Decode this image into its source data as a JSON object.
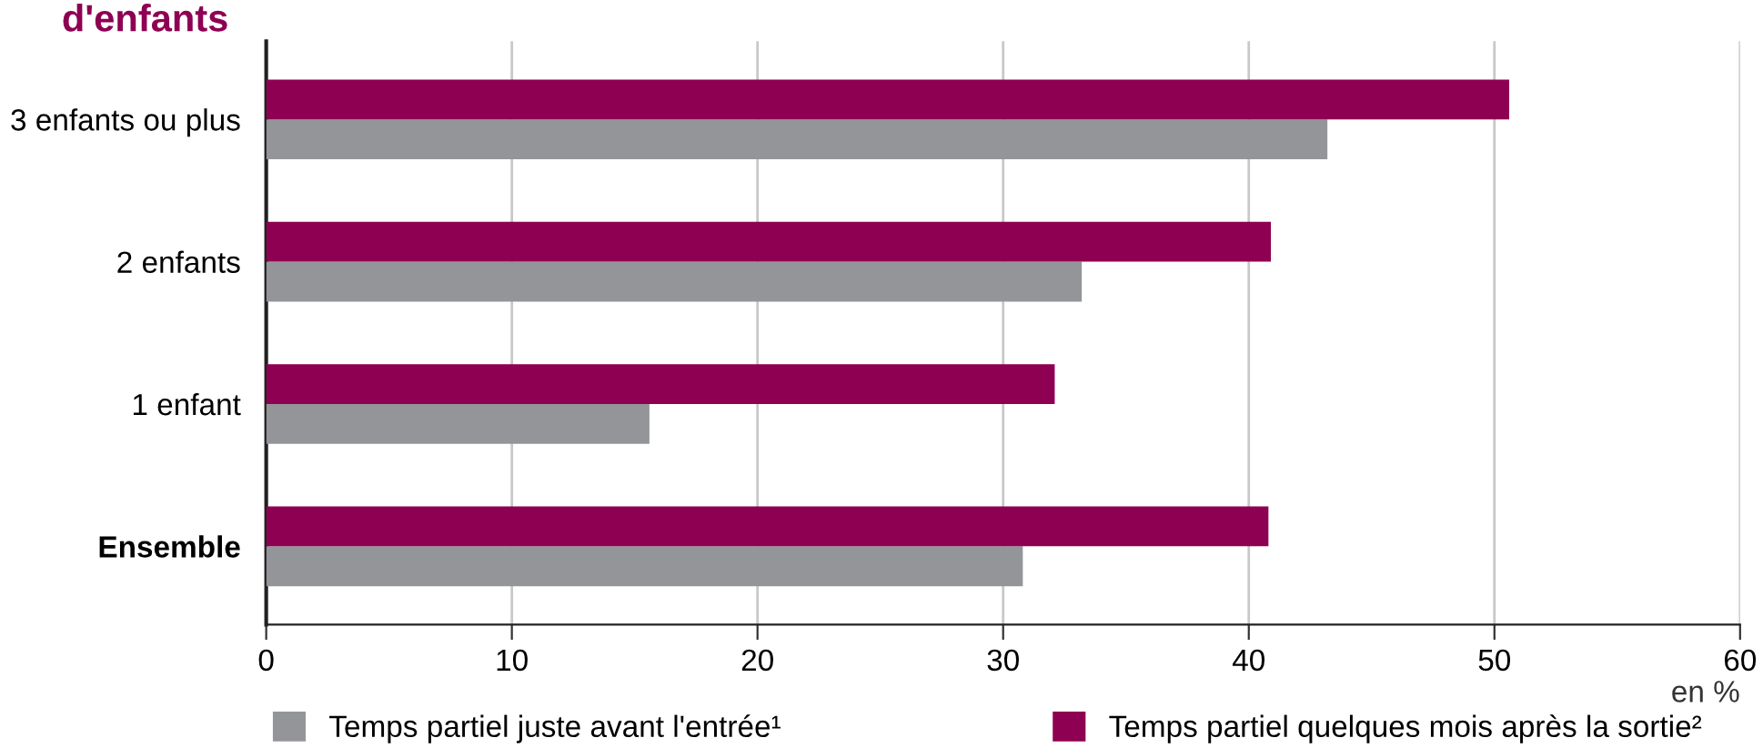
{
  "chart_data": {
    "type": "bar",
    "orientation": "horizontal",
    "title": "d'enfants",
    "xlabel": "en %",
    "categories": [
      "3 enfants ou plus",
      "2 enfants",
      "1 enfant",
      "Ensemble"
    ],
    "series": [
      {
        "name": "Temps partiel juste avant l'entrée¹",
        "color": "#939598",
        "values": [
          43.2,
          33.2,
          15.6,
          30.8
        ]
      },
      {
        "name": "Temps partiel quelques mois après la sortie²",
        "color": "#8e0052",
        "values": [
          50.6,
          40.9,
          32.1,
          40.8
        ]
      }
    ],
    "xlim": [
      0,
      60
    ],
    "xticks": [
      0,
      10,
      20,
      30,
      40,
      50,
      60
    ],
    "grid": "x",
    "legend": "bottom"
  }
}
